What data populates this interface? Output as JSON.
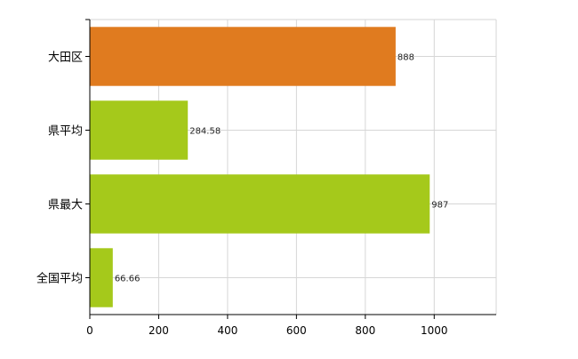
{
  "chart_data": {
    "type": "bar",
    "orientation": "horizontal",
    "categories": [
      "大田区",
      "県平均",
      "県最大",
      "全国平均"
    ],
    "values": [
      888,
      284.58,
      987,
      66.66
    ],
    "value_labels": [
      "888",
      "284.58",
      "987",
      "66.66"
    ],
    "bar_colors": [
      "#e07b1f",
      "#a5c91b",
      "#a5c91b",
      "#a5c91b"
    ],
    "xlim": [
      0,
      1180
    ],
    "x_ticks": [
      0,
      200,
      400,
      600,
      800,
      1000
    ],
    "x_tick_labels": [
      "0",
      "200",
      "400",
      "600",
      "800",
      "1000"
    ],
    "grid": true,
    "legend": "none",
    "title": "",
    "xlabel": "",
    "ylabel": ""
  }
}
